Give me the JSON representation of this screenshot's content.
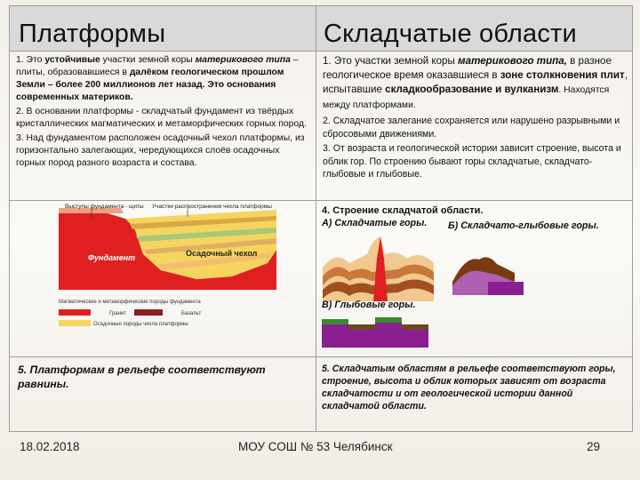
{
  "slide": {
    "header_left": "Платформы",
    "header_right": "Складчатые области"
  },
  "left_text": {
    "p1_a": "1. Это ",
    "p1_b": "устойчивые",
    "p1_c": " участки земной коры ",
    "p1_d": "материкового типа",
    "p1_e": " – плиты, образовавшиеся в ",
    "p1_f": "далёком геологическом прошлом Земли – более 200 миллионов лет назад. Это основания современных материков.",
    "p2": "2. В основании платформы - складчатый фундамент из твёрдых кристаллических магматических и метаморфических горных пород.",
    "p3": "3. Над фундаментом расположен осадочный чехол платформы, из горизонтально залегающих, чередующихся слоёв осадочных горных пород разного возраста и состава."
  },
  "right_text": {
    "p1_a": "1. Это участки земной коры ",
    "p1_b": "материкового типа,",
    "p1_c": " в разное геологическое время оказавшиеся в ",
    "p1_d": "зоне столкновения плит",
    "p1_e": ", испытавшие ",
    "p1_f": "складкообразование и вулканизм",
    "p1_g": ". Находятся между платформами.",
    "p2": "2. Складчатое залегание сохраняется или нарушено разрывными и сбросовыми движениями.",
    "p3": "3. От возраста и геологической истории зависит строение, высота и облик гор.  По строению бывают горы складчатые, складчато-глыбовые и глыбовые."
  },
  "diagram_left": {
    "label_shields": "Выступы фундамента - щиты",
    "label_plates": "Участки распространения чехла платформы",
    "label_foundation": "Фундамент",
    "label_cover": "Осадочный чехол",
    "legend_title": "Магматические и метаморфические породы фундамента",
    "legend_granite": "Гранит",
    "legend_basalt": "Базальт",
    "legend_sediment": "Осадочные породы чехла платформы",
    "colors": {
      "foundation": "#e02020",
      "sediment": "#f5d560",
      "sediment_dark": "#d9a845",
      "green": "#a8c878"
    }
  },
  "structure": {
    "title": "4. Строение складчатой области.",
    "a_label": "А) Складчатые горы.",
    "b_label": "Б) Складчато-глыбовые горы.",
    "c_label": "В) Глыбовые горы."
  },
  "bottom": {
    "left": "5. Платформам в рельефе соответствуют равнины.",
    "right": "5. Складчатым областям в рельефе соответствуют горы, строение, высота и облик которых зависят от возраста складчатости и от геологической истории данной складчатой области."
  },
  "footer": {
    "date": "18.02.2018",
    "school": "МОУ СОШ № 53 Челябинск",
    "page": "29"
  }
}
